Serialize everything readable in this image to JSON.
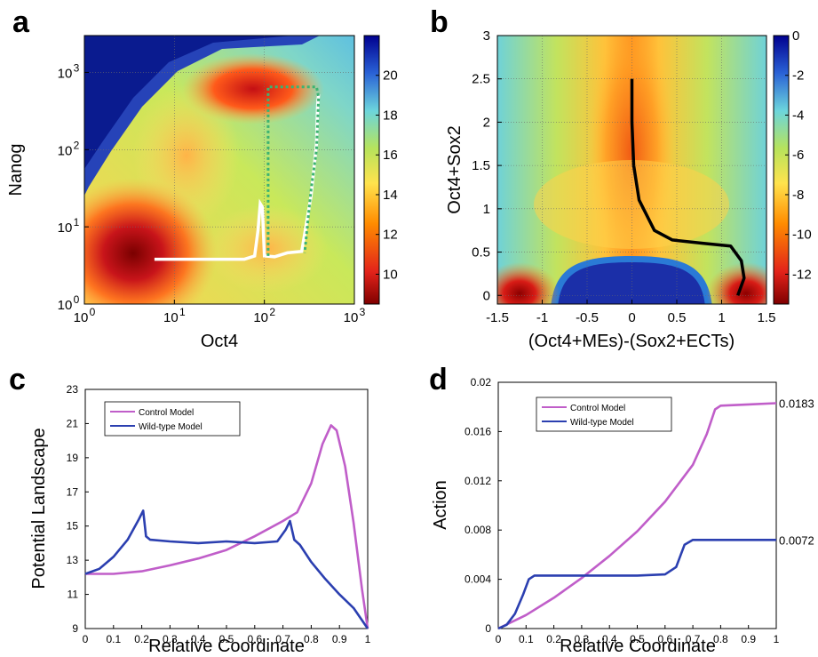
{
  "chart_data": [
    {
      "panel": "a",
      "type": "heatmap",
      "xlabel": "Oct4",
      "ylabel": "Nanog",
      "xscale": "log",
      "yscale": "log",
      "xlim": [
        1,
        1000
      ],
      "ylim": [
        1,
        3000
      ],
      "xticks": [
        {
          "base": "10",
          "exp": "0"
        },
        {
          "base": "10",
          "exp": "1"
        },
        {
          "base": "10",
          "exp": "2"
        },
        {
          "base": "10",
          "exp": "3"
        }
      ],
      "yticks": [
        {
          "base": "10",
          "exp": "0"
        },
        {
          "base": "10",
          "exp": "1"
        },
        {
          "base": "10",
          "exp": "2"
        },
        {
          "base": "10",
          "exp": "3"
        }
      ],
      "colorbar": {
        "range": [
          8.5,
          22
        ],
        "ticks": [
          "10",
          "12",
          "14",
          "16",
          "18",
          "20"
        ]
      },
      "grid": true,
      "paths": [
        {
          "color": "#ffffff",
          "style": "solid",
          "points": [
            [
              6,
              3.8
            ],
            [
              20,
              3.8
            ],
            [
              60,
              3.8
            ],
            [
              78,
              4.2
            ],
            [
              85,
              9
            ],
            [
              90,
              20
            ],
            [
              95,
              18
            ],
            [
              100,
              4.2
            ],
            [
              130,
              4.1
            ],
            [
              180,
              4.6
            ],
            [
              260,
              4.8
            ],
            [
              330,
              25
            ],
            [
              380,
              120
            ],
            [
              390,
              380
            ],
            [
              400,
              520
            ]
          ]
        },
        {
          "color": "#3cb371",
          "style": "dotted",
          "points": [
            [
              110,
              4.2
            ],
            [
              110,
              650
            ],
            [
              380,
              650
            ],
            [
              400,
              480
            ],
            [
              380,
              100
            ],
            [
              330,
              30
            ],
            [
              280,
              4.6
            ]
          ]
        }
      ],
      "features": [
        {
          "kind": "basin",
          "x": 6,
          "y": 3.8,
          "label": "dark red basin"
        },
        {
          "kind": "basin",
          "x": 180,
          "y": 600,
          "label": "upper basin"
        }
      ]
    },
    {
      "panel": "b",
      "type": "heatmap",
      "xlabel": "(Oct4+MEs)-(Sox2+ECTs)",
      "ylabel": "Oct4+Sox2",
      "xlim": [
        -1.5,
        1.5
      ],
      "ylim": [
        -0.1,
        3
      ],
      "xticks": [
        "-1.5",
        "-1",
        "-0.5",
        "0",
        "0.5",
        "1",
        "1.5"
      ],
      "yticks": [
        "0",
        "0.5",
        "1",
        "1.5",
        "2",
        "2.5",
        "3"
      ],
      "colorbar": {
        "range": [
          -13.5,
          0
        ],
        "ticks": [
          "0",
          "-2",
          "-4",
          "-6",
          "-8",
          "-10",
          "-12"
        ]
      },
      "grid": true,
      "path": {
        "color": "#000000",
        "points": [
          [
            0.0,
            2.5
          ],
          [
            0.0,
            2.0
          ],
          [
            0.02,
            1.5
          ],
          [
            0.08,
            1.1
          ],
          [
            0.25,
            0.75
          ],
          [
            0.45,
            0.64
          ],
          [
            0.8,
            0.6
          ],
          [
            1.1,
            0.57
          ],
          [
            1.22,
            0.4
          ],
          [
            1.25,
            0.2
          ],
          [
            1.18,
            0.0
          ]
        ]
      }
    },
    {
      "panel": "c",
      "type": "line",
      "xlabel": "Relative Coordinate",
      "ylabel": "Potential Landscape",
      "xlim": [
        0,
        1
      ],
      "ylim": [
        9,
        23
      ],
      "xticks": [
        "0",
        "0.1",
        "0.2",
        "0.3",
        "0.4",
        "0.5",
        "0.6",
        "0.7",
        "0.8",
        "0.9",
        "1"
      ],
      "yticks": [
        "9",
        "11",
        "13",
        "15",
        "17",
        "19",
        "21",
        "23"
      ],
      "legend": "top-left",
      "series": [
        {
          "name": "Control Model",
          "color": "#c05ec9",
          "x": [
            0,
            0.1,
            0.2,
            0.3,
            0.4,
            0.5,
            0.6,
            0.7,
            0.75,
            0.8,
            0.84,
            0.87,
            0.89,
            0.92,
            0.95,
            0.98,
            1.0
          ],
          "y": [
            12.2,
            12.2,
            12.35,
            12.7,
            13.1,
            13.6,
            14.4,
            15.3,
            15.8,
            17.5,
            19.8,
            20.9,
            20.6,
            18.5,
            15.2,
            11.3,
            9.0
          ]
        },
        {
          "name": "Wild-type Model",
          "color": "#2b3fb0",
          "x": [
            0,
            0.05,
            0.1,
            0.15,
            0.19,
            0.205,
            0.215,
            0.23,
            0.3,
            0.4,
            0.5,
            0.6,
            0.68,
            0.71,
            0.725,
            0.74,
            0.76,
            0.8,
            0.85,
            0.9,
            0.95,
            1.0
          ],
          "y": [
            12.2,
            12.5,
            13.2,
            14.2,
            15.4,
            15.9,
            14.4,
            14.2,
            14.1,
            14.0,
            14.1,
            14.0,
            14.1,
            14.8,
            15.3,
            14.2,
            13.9,
            12.9,
            11.9,
            11.0,
            10.2,
            9.0
          ]
        }
      ]
    },
    {
      "panel": "d",
      "type": "line",
      "xlabel": "Relative Coordinate",
      "ylabel": "Action",
      "xlim": [
        0,
        1
      ],
      "ylim": [
        0,
        0.02
      ],
      "xticks": [
        "0",
        "0.1",
        "0.2",
        "0.3",
        "0.4",
        "0.5",
        "0.6",
        "0.7",
        "0.8",
        "0.9",
        "1"
      ],
      "yticks": [
        "0",
        "0.004",
        "0.008",
        "0.012",
        "0.016",
        "0.02"
      ],
      "legend": "top-left",
      "end_labels": [
        "0.0183",
        "0.0072"
      ],
      "series": [
        {
          "name": "Control Model",
          "color": "#c05ec9",
          "x": [
            0,
            0.1,
            0.2,
            0.3,
            0.4,
            0.5,
            0.6,
            0.7,
            0.75,
            0.78,
            0.8,
            0.9,
            1.0
          ],
          "y": [
            0,
            0.0011,
            0.0025,
            0.0041,
            0.0059,
            0.0079,
            0.0103,
            0.0133,
            0.0158,
            0.0178,
            0.0181,
            0.0182,
            0.0183
          ]
        },
        {
          "name": "Wild-type Model",
          "color": "#2b3fb0",
          "x": [
            0,
            0.03,
            0.06,
            0.09,
            0.11,
            0.13,
            0.2,
            0.3,
            0.4,
            0.5,
            0.6,
            0.64,
            0.67,
            0.7,
            0.8,
            0.9,
            1.0
          ],
          "y": [
            0,
            0.0003,
            0.0012,
            0.0028,
            0.004,
            0.0043,
            0.0043,
            0.0043,
            0.0043,
            0.0043,
            0.0044,
            0.005,
            0.0068,
            0.0072,
            0.0072,
            0.0072,
            0.0072
          ]
        }
      ]
    }
  ],
  "panels": {
    "a": {
      "letter": "a"
    },
    "b": {
      "letter": "b"
    },
    "c": {
      "letter": "c"
    },
    "d": {
      "letter": "d"
    }
  }
}
